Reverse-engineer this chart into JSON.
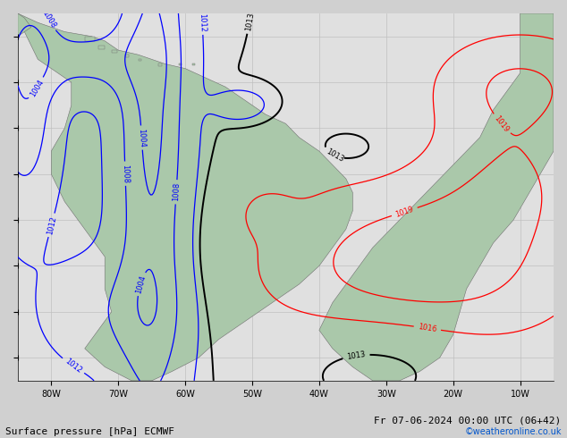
{
  "title_bottom_left": "Surface pressure [hPa] ECMWF",
  "title_bottom_right": "Fr 07-06-2024 00:00 UTC (06+42)",
  "watermark": "©weatheronline.co.uk",
  "ocean_color": "#e0e0e0",
  "land_color": "#aac8aa",
  "grid_color": "#c0c0c0",
  "fig_width": 6.34,
  "fig_height": 4.9,
  "dpi": 100,
  "xlim": [
    -85,
    -5
  ],
  "ylim": [
    -55,
    25
  ],
  "xticks": [
    -80,
    -70,
    -60,
    -50,
    -40,
    -30,
    -20,
    -10
  ],
  "xlabel_labels": [
    "80W",
    "70W",
    "60W",
    "50W",
    "40W",
    "30W",
    "20W",
    "10W"
  ],
  "bottom_fontsize": 8,
  "label_fontsize": 6
}
